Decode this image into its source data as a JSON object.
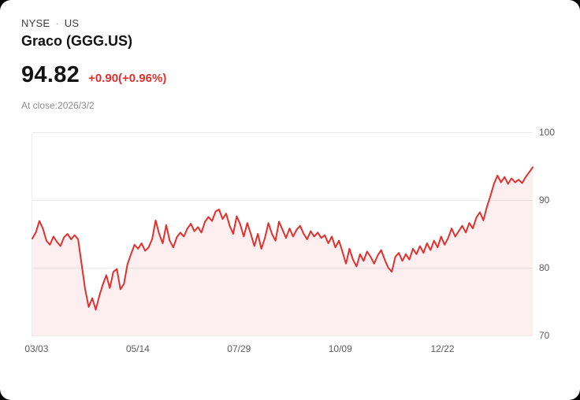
{
  "header": {
    "exchange": "NYSE",
    "separator": "·",
    "region": "US",
    "title": "Graco (GGG.US)",
    "price": "94.82",
    "change": "+0.90(+0.96%)",
    "at_close": "At close:2026/3/2"
  },
  "colors": {
    "change_red": "#e0312e",
    "line_red": "#e0312e",
    "area_fill": "rgba(224,49,46,0.08)",
    "gridline": "#ececec",
    "axis_text": "#5c5c5c"
  },
  "chart_data": {
    "type": "area",
    "title": "Graco (GGG.US) price history",
    "xlabel": "",
    "ylabel": "",
    "ylim": [
      70,
      100
    ],
    "y_ticks": [
      "100",
      "90",
      "80",
      "70"
    ],
    "x_ticks": [
      {
        "label": "03/03",
        "pos": 0.01
      },
      {
        "label": "05/14",
        "pos": 0.212
      },
      {
        "label": "07/29",
        "pos": 0.414
      },
      {
        "label": "10/09",
        "pos": 0.616
      },
      {
        "label": "12/22",
        "pos": 0.82
      }
    ],
    "last_price": 94.82,
    "values": [
      84.3,
      85.2,
      86.9,
      85.8,
      84.0,
      83.4,
      84.6,
      83.8,
      83.2,
      84.5,
      85.0,
      84.2,
      84.8,
      84.2,
      80.5,
      76.8,
      74.2,
      75.5,
      73.8,
      75.8,
      77.5,
      78.9,
      77.0,
      79.4,
      79.8,
      76.8,
      77.6,
      80.5,
      82.0,
      83.4,
      82.8,
      83.6,
      82.5,
      83.0,
      84.2,
      87.0,
      85.0,
      83.6,
      86.3,
      84.0,
      83.0,
      84.5,
      85.2,
      84.6,
      85.8,
      86.5,
      85.4,
      86.0,
      85.2,
      86.8,
      87.5,
      86.9,
      88.3,
      88.6,
      87.2,
      88.0,
      86.2,
      85.0,
      87.6,
      86.4,
      84.6,
      86.6,
      85.0,
      83.2,
      85.0,
      82.8,
      84.4,
      86.6,
      85.0,
      84.0,
      86.8,
      85.6,
      84.4,
      85.8,
      84.6,
      85.6,
      86.2,
      85.0,
      84.2,
      85.4,
      84.6,
      85.2,
      84.4,
      84.8,
      83.6,
      84.6,
      83.0,
      84.0,
      82.4,
      80.6,
      82.8,
      81.2,
      80.2,
      82.0,
      81.0,
      82.4,
      81.6,
      80.6,
      81.8,
      82.6,
      81.2,
      80.0,
      79.4,
      81.6,
      82.2,
      81.0,
      82.0,
      81.2,
      82.8,
      82.0,
      83.2,
      82.2,
      83.6,
      82.6,
      84.0,
      83.0,
      84.6,
      83.4,
      84.4,
      85.8,
      84.6,
      85.4,
      86.2,
      85.2,
      86.6,
      85.8,
      87.4,
      88.2,
      87.0,
      89.0,
      90.6,
      92.4,
      93.6,
      92.6,
      93.4,
      92.4,
      93.2,
      92.6,
      93.0,
      92.5,
      93.4,
      94.1,
      94.82
    ]
  }
}
